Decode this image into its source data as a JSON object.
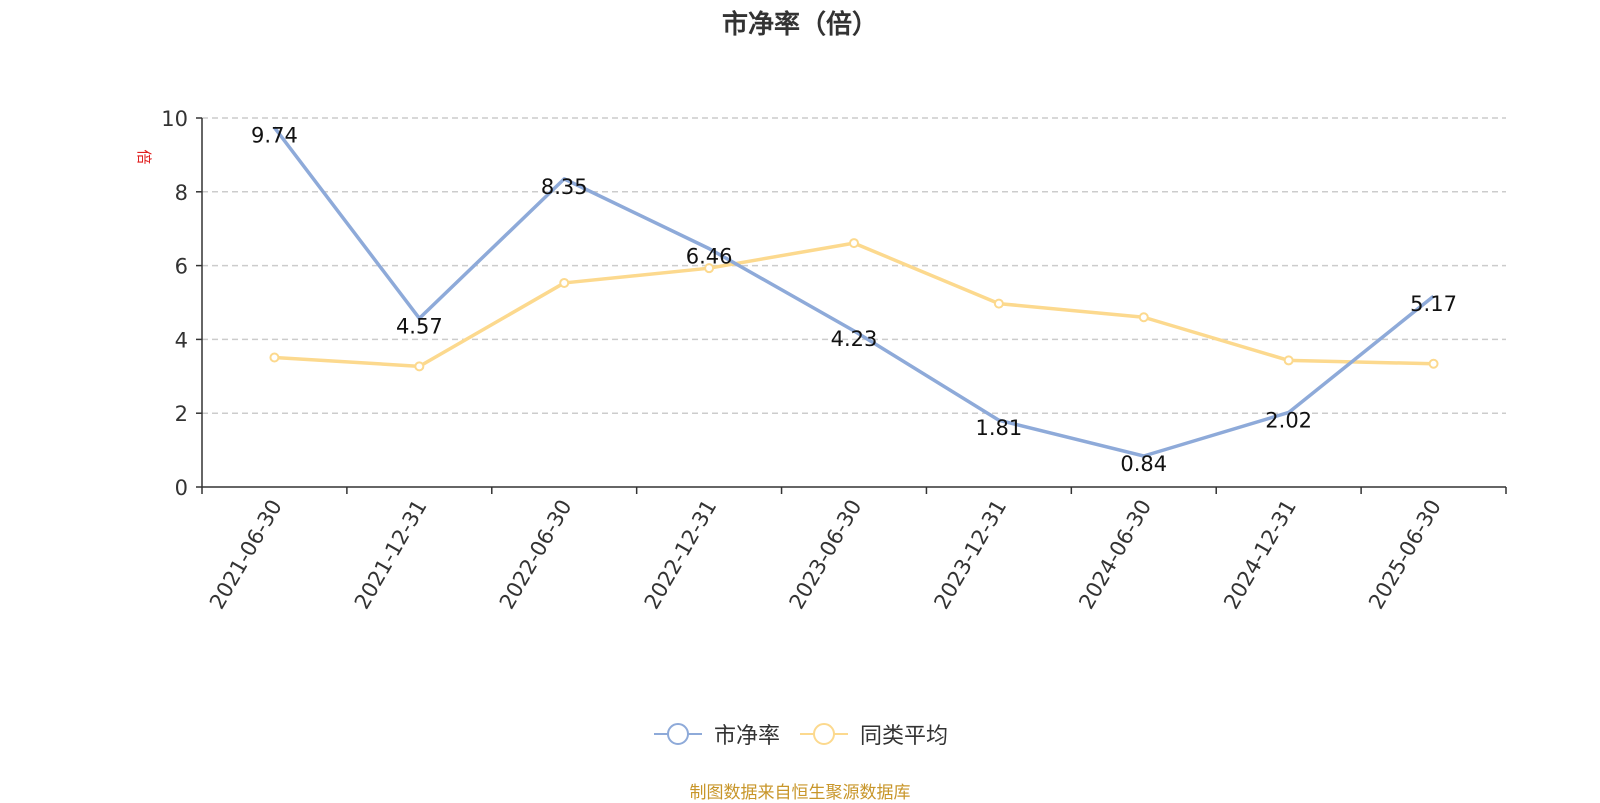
{
  "chart_data": {
    "type": "line",
    "title": "市净率（倍）",
    "ylabel": "倍",
    "ylim": [
      0,
      10
    ],
    "yticks": [
      0,
      2,
      4,
      6,
      8,
      10
    ],
    "categories": [
      "2021-06-30",
      "2021-12-31",
      "2022-06-30",
      "2022-12-31",
      "2023-06-30",
      "2023-12-31",
      "2024-06-30",
      "2024-12-31",
      "2025-06-30"
    ],
    "series": [
      {
        "name": "市净率",
        "color": "#8eaad9",
        "values": [
          9.74,
          4.57,
          8.35,
          6.46,
          4.23,
          1.81,
          0.84,
          2.02,
          5.17
        ],
        "labels": [
          "9.74",
          "4.57",
          "8.35",
          "6.46",
          "4.23",
          "1.81",
          "0.84",
          "2.02",
          "5.17"
        ]
      },
      {
        "name": "同类平均",
        "color": "#fcd98e",
        "values": [
          3.51,
          3.27,
          5.53,
          5.93,
          6.61,
          4.97,
          4.6,
          3.43,
          3.34
        ]
      }
    ],
    "grid": true,
    "legend_position": "bottom-center"
  },
  "source_note": "制图数据来自恒生聚源数据库"
}
